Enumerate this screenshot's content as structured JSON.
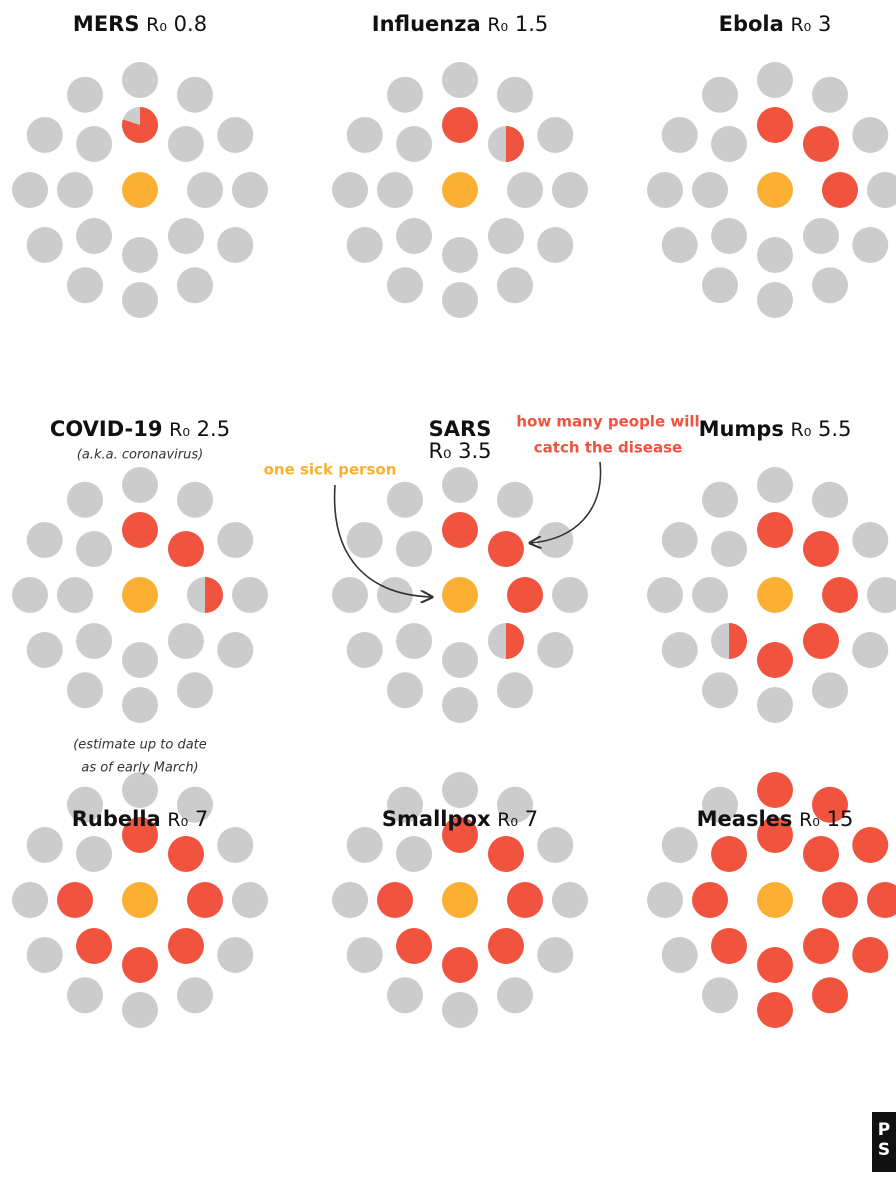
{
  "r0_symbol": "R₀",
  "panels": [
    {
      "name": "MERS",
      "r0": 0.8
    },
    {
      "name": "Influenza",
      "r0": 1.5
    },
    {
      "name": "Ebola",
      "r0": 3
    },
    {
      "name": "COVID-19",
      "r0": 2.5
    },
    {
      "name": "SARS",
      "r0": 3.5
    },
    {
      "name": "Mumps",
      "r0": 5.5
    },
    {
      "name": "Rubella",
      "r0": 7
    },
    {
      "name": "Smallpox",
      "r0": 7
    },
    {
      "name": "Measles",
      "r0": 15
    }
  ],
  "notes": {
    "covid_aka": "(a.k.a. coronavirus)",
    "covid_estimate": [
      "(estimate up to date",
      "as of early March)"
    ]
  },
  "annotations": {
    "sick_person": "one sick person",
    "catch": [
      "how many people will",
      "catch the disease"
    ]
  },
  "logo": [
    "P",
    "S"
  ]
}
